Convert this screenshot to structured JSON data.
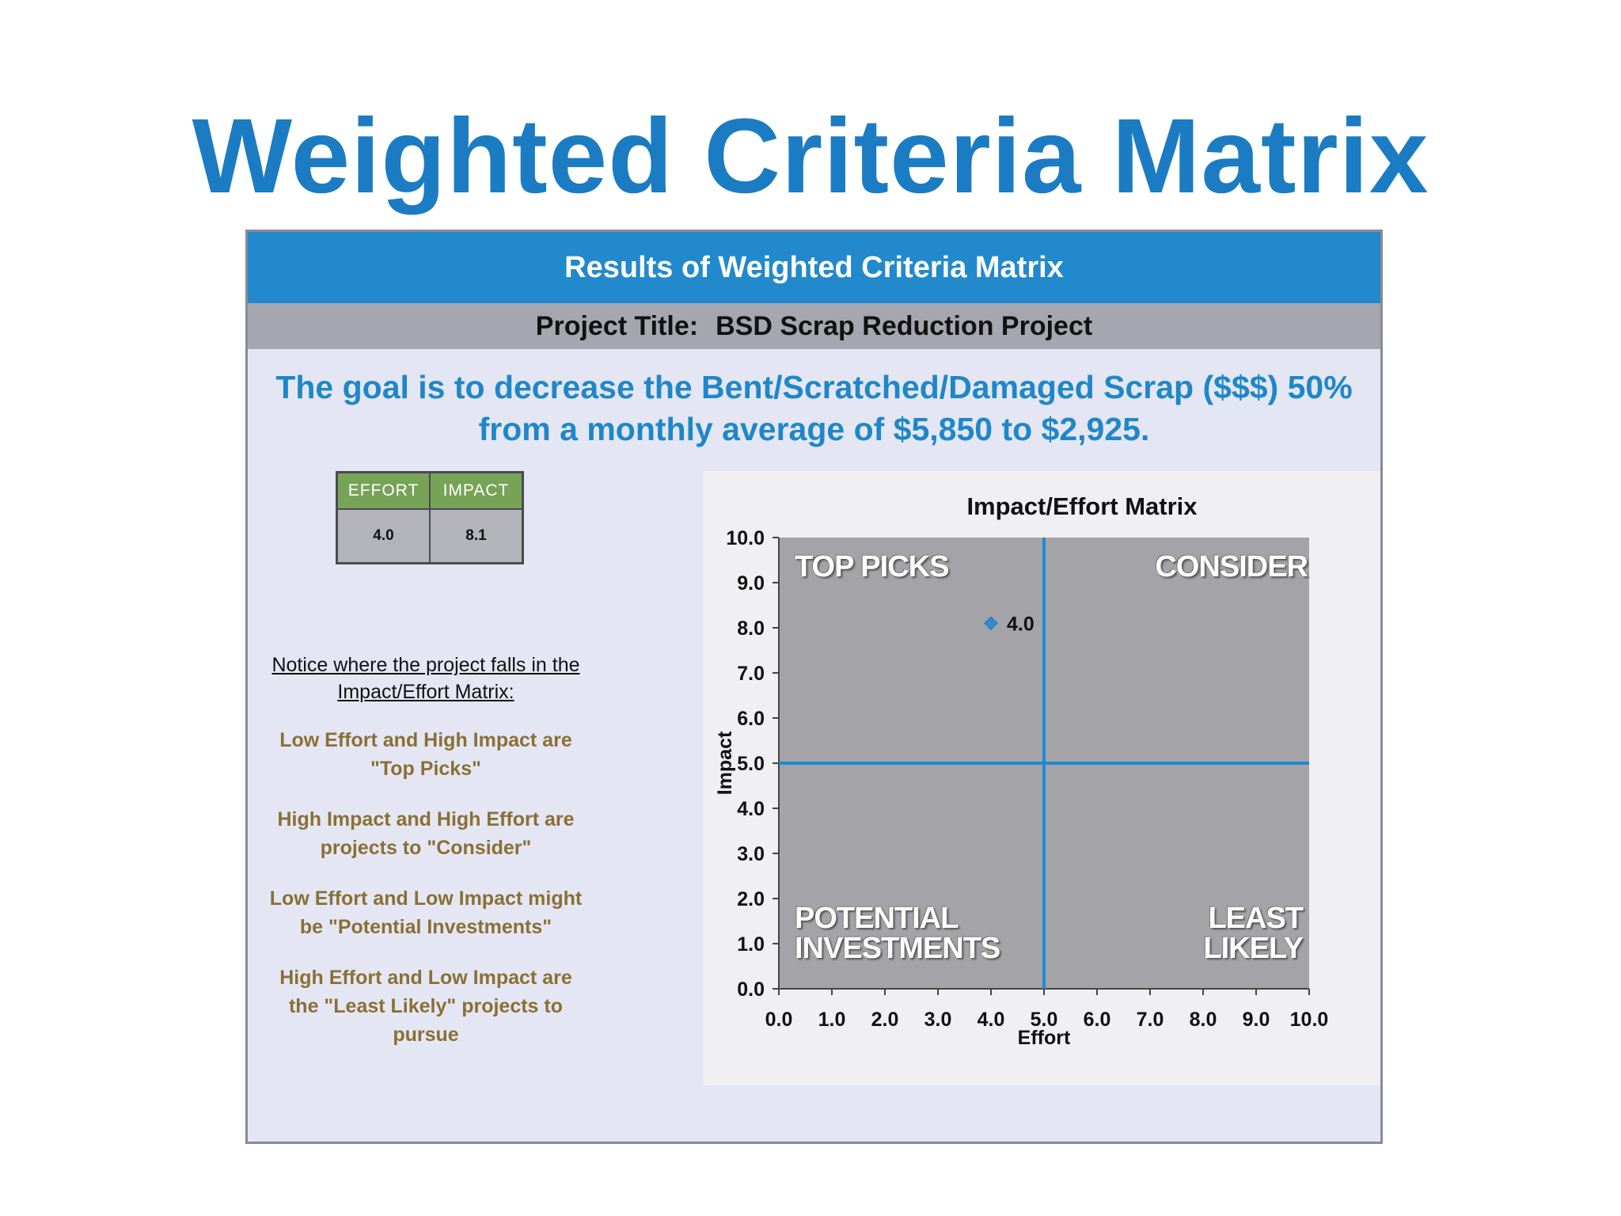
{
  "slide": {
    "title": "Weighted Criteria Matrix"
  },
  "panel": {
    "banner": "Results of Weighted Criteria Matrix",
    "project_label": "Project Title:",
    "project_name": "BSD Scrap Reduction Project",
    "goal_line1": "The goal is to decrease the Bent/Scratched/Damaged Scrap ($$$) 50%",
    "goal_line2": "from a monthly average of $5,850 to $2,925."
  },
  "scores": {
    "headers": [
      "EFFORT",
      "IMPACT"
    ],
    "values": [
      "4.0",
      "8.1"
    ],
    "colors": {
      "header_bg": "#76a356",
      "cell_bg": "#b3b3ba"
    }
  },
  "notes": {
    "notice": [
      "Notice where the project falls in the",
      "Impact/Effort Matrix:"
    ],
    "items": [
      [
        "Low Effort and High Impact are",
        "\"Top Picks\""
      ],
      [
        "High Impact and High Effort are",
        "projects to \"Consider\""
      ],
      [
        "Low Effort and Low Impact might",
        "be \"Potential Investments\""
      ],
      [
        "High Effort and Low Impact are",
        "the \"Least Likely\" projects to",
        "pursue"
      ]
    ]
  },
  "chart_data": {
    "type": "scatter",
    "title": "Impact/Effort Matrix",
    "xlabel": "Effort",
    "ylabel": "Impact",
    "xlim": [
      0,
      10
    ],
    "ylim": [
      0,
      10
    ],
    "xticks": [
      "0.0",
      "1.0",
      "2.0",
      "3.0",
      "4.0",
      "5.0",
      "6.0",
      "7.0",
      "8.0",
      "9.0",
      "10.0"
    ],
    "yticks": [
      "0.0",
      "1.0",
      "2.0",
      "3.0",
      "4.0",
      "5.0",
      "6.0",
      "7.0",
      "8.0",
      "9.0",
      "10.0"
    ],
    "points": [
      {
        "x": 4.0,
        "y": 8.1,
        "label": "4.0"
      }
    ],
    "divider_x": 5.0,
    "divider_y": 5.0,
    "quadrants": {
      "top_left": [
        "TOP PICKS"
      ],
      "top_right": [
        "CONSIDER"
      ],
      "bottom_left": [
        "POTENTIAL",
        "INVESTMENTS"
      ],
      "bottom_right": [
        "LEAST",
        "LIKELY"
      ]
    },
    "grid": false,
    "colors": {
      "plot_bg": "#a4a4a8",
      "line": "#1f8ad0",
      "marker": "#2b8fd8"
    }
  }
}
